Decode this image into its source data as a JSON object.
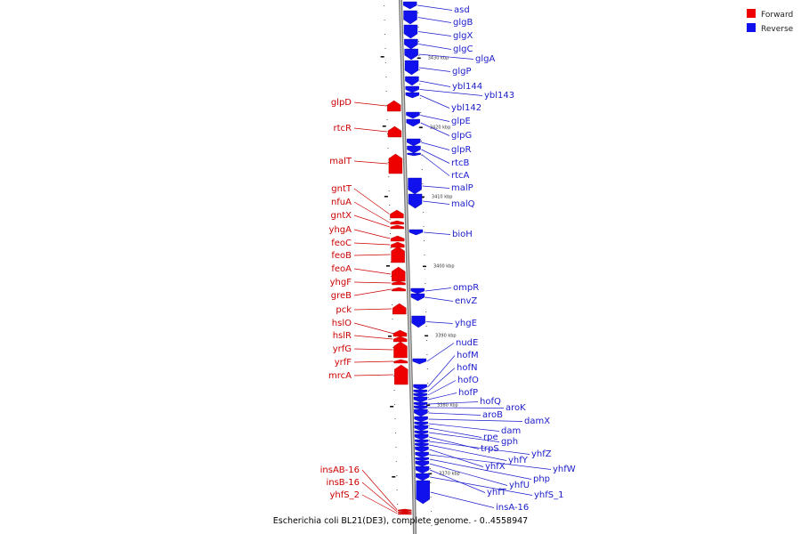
{
  "caption": "Escherichia coli BL21(DE3), complete genome. - 0..4558947",
  "legend": {
    "forward": {
      "label": "Forward",
      "color": "#ee0000"
    },
    "reverse": {
      "label": "Reverse",
      "color": "#1111ee"
    }
  },
  "ticks": [
    "3430 kbp",
    "3420 kbp",
    "3410 kbp",
    "3400 kbp",
    "3390 kbp",
    "3380 kbp",
    "3370 kbp"
  ],
  "forward_genes": [
    "glpD",
    "rtcR",
    "malT",
    "gntT",
    "nfuA",
    "gntX",
    "yhgA",
    "feoC",
    "feoB",
    "feoA",
    "yhgF",
    "greB",
    "pck",
    "hslO",
    "hslR",
    "yrfG",
    "yrfF",
    "mrcA",
    "insAB-16",
    "insB-16",
    "yhfS_2"
  ],
  "reverse_genes": [
    "asd",
    "glgB",
    "glgX",
    "glgC",
    "glgA",
    "glgP",
    "ybl144",
    "ybl143",
    "ybl142",
    "glpE",
    "glpG",
    "glpR",
    "rtcB",
    "rtcA",
    "malP",
    "malQ",
    "bioH",
    "ompR",
    "envZ",
    "yhgE",
    "nudE",
    "hofM",
    "hofN",
    "hofO",
    "hofP",
    "hofQ",
    "aroK",
    "aroB",
    "damX",
    "dam",
    "rpe",
    "gph",
    "trpS",
    "yhfZ",
    "yhfY",
    "yhfX",
    "yhfW",
    "php",
    "yhfU",
    "yhfT",
    "yhfS_1",
    "insA-16"
  ]
}
